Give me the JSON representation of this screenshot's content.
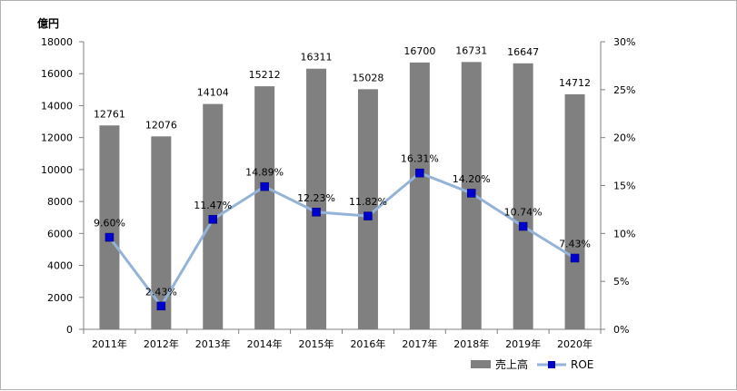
{
  "chart_data": {
    "type": "bar",
    "unit_label": "億円",
    "categories": [
      "2011年",
      "2012年",
      "2013年",
      "2014年",
      "2015年",
      "2016年",
      "2017年",
      "2018年",
      "2019年",
      "2020年"
    ],
    "series": [
      {
        "name": "売上高",
        "chart": "bar",
        "axis": "left",
        "color": "#808080",
        "values": [
          12761,
          12076,
          14104,
          15212,
          16311,
          15028,
          16700,
          16731,
          16647,
          14712
        ],
        "labels": [
          "12761",
          "12076",
          "14104",
          "15212",
          "16311",
          "15028",
          "16700",
          "16731",
          "16647",
          "14712"
        ]
      },
      {
        "name": "ROE",
        "chart": "line",
        "axis": "right",
        "line_color": "#95b3d7",
        "marker_color": "#0000cc",
        "values": [
          9.6,
          2.43,
          11.47,
          14.89,
          12.23,
          11.82,
          16.31,
          14.2,
          10.74,
          7.43
        ],
        "labels": [
          "9.60%",
          "2.43%",
          "11.47%",
          "14.89%",
          "12.23%",
          "11.82%",
          "16.31%",
          "14.20%",
          "10.74%",
          "7.43%"
        ]
      }
    ],
    "y_left": {
      "ylim": [
        0,
        18000
      ],
      "ticks": [
        0,
        2000,
        4000,
        6000,
        8000,
        10000,
        12000,
        14000,
        16000,
        18000
      ],
      "tick_labels": [
        "0",
        "2000",
        "4000",
        "6000",
        "8000",
        "10000",
        "12000",
        "14000",
        "16000",
        "18000"
      ]
    },
    "y_right": {
      "ylim": [
        0,
        30
      ],
      "ticks": [
        0,
        5,
        10,
        15,
        20,
        25,
        30
      ],
      "tick_labels": [
        "0%",
        "5%",
        "10%",
        "15%",
        "20%",
        "25%",
        "30%"
      ]
    },
    "grid": false,
    "legend": {
      "position": "bottom-right",
      "items": [
        {
          "label": "売上高",
          "kind": "bar"
        },
        {
          "label": "ROE",
          "kind": "line"
        }
      ]
    }
  }
}
